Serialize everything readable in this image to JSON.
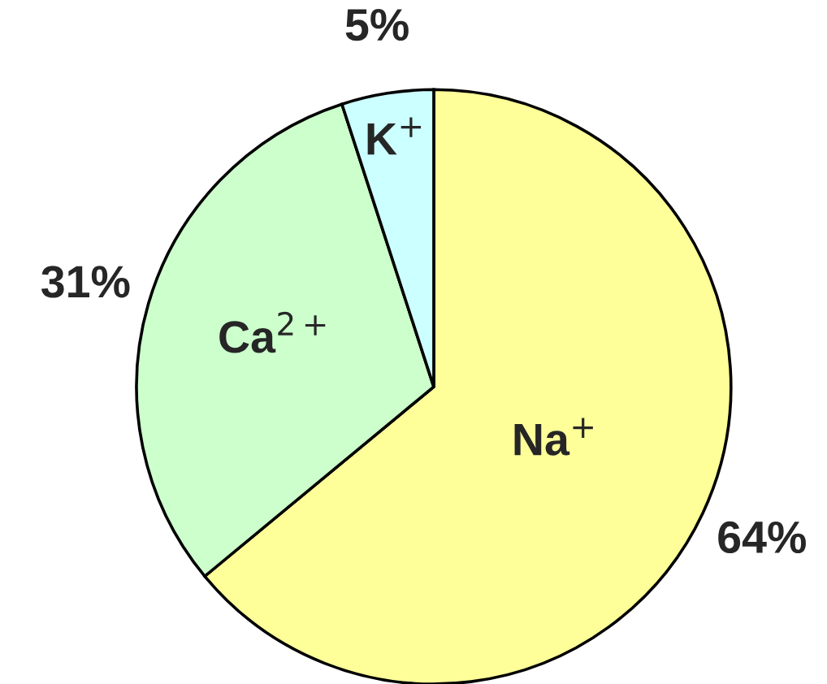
{
  "chart_data": {
    "type": "pie",
    "categories": [
      "Na$^{+}$",
      "Ca$^{2+}$",
      "K$^{+}$"
    ],
    "values": [
      64,
      31,
      5
    ],
    "value_labels": [
      "64%",
      "31%",
      "5%"
    ],
    "colors": [
      "#ffff99",
      "#ccffcc",
      "#ccffff"
    ],
    "legend": false
  }
}
